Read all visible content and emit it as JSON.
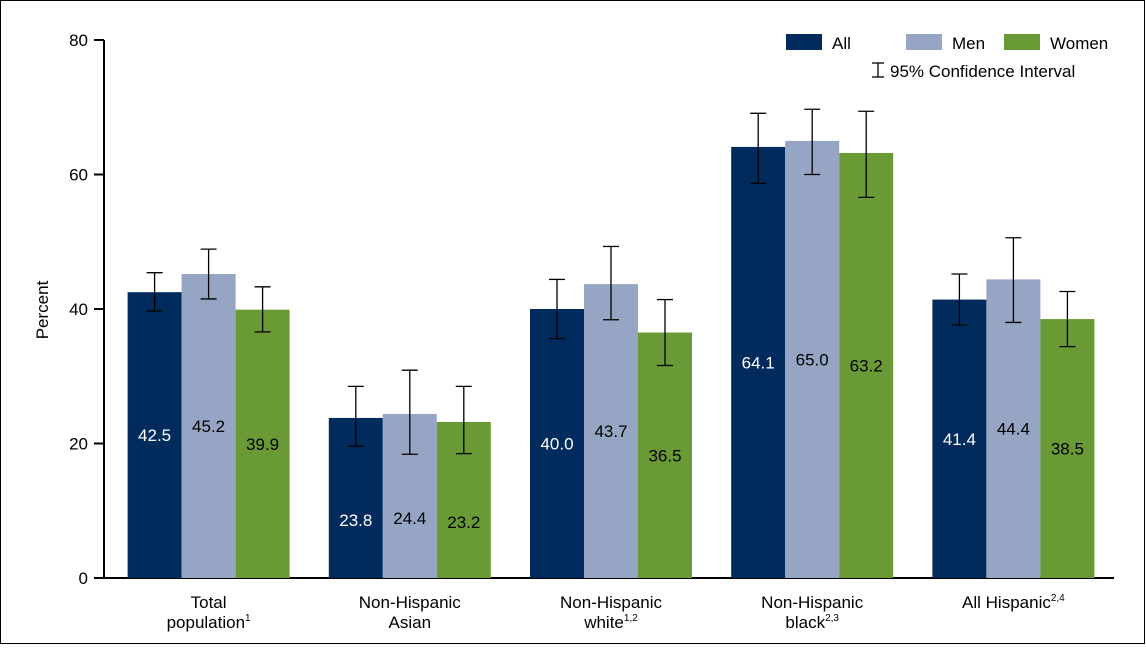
{
  "chart_data": {
    "type": "bar",
    "title": "",
    "xlabel": "",
    "ylabel": "Percent",
    "ylim": [
      0,
      80
    ],
    "yticks": [
      0,
      20,
      40,
      60,
      80
    ],
    "grid": false,
    "legend_position": "top-right",
    "categories": [
      {
        "label_lines": [
          "Total",
          "population"
        ],
        "sup": "1"
      },
      {
        "label_lines": [
          "Non-Hispanic",
          "Asian"
        ],
        "sup": ""
      },
      {
        "label_lines": [
          "Non-Hispanic",
          "white"
        ],
        "sup": "1,2"
      },
      {
        "label_lines": [
          "Non-Hispanic",
          "black"
        ],
        "sup": "2,3"
      },
      {
        "label_lines": [
          "All Hispanic"
        ],
        "sup": "2,4"
      }
    ],
    "series": [
      {
        "name": "All",
        "color": "#002b5c",
        "label_color": "#ffffff",
        "values": [
          42.5,
          23.8,
          40.0,
          64.1,
          41.4
        ],
        "ci": [
          [
            39.7,
            45.4
          ],
          [
            19.6,
            28.5
          ],
          [
            35.6,
            44.4
          ],
          [
            58.7,
            69.1
          ],
          [
            37.6,
            45.2
          ]
        ]
      },
      {
        "name": "Men",
        "color": "#96a5c4",
        "label_color": "#000000",
        "values": [
          45.2,
          24.4,
          43.7,
          65.0,
          44.4
        ],
        "ci": [
          [
            41.5,
            48.9
          ],
          [
            18.4,
            30.9
          ],
          [
            38.4,
            49.3
          ],
          [
            60.0,
            69.7
          ],
          [
            38.0,
            50.6
          ]
        ]
      },
      {
        "name": "Women",
        "color": "#6a9a36",
        "label_color": "#000000",
        "values": [
          39.9,
          23.2,
          36.5,
          63.2,
          38.5
        ],
        "ci": [
          [
            36.6,
            43.3
          ],
          [
            18.5,
            28.5
          ],
          [
            31.6,
            41.4
          ],
          [
            56.6,
            69.4
          ],
          [
            34.4,
            42.6
          ]
        ]
      }
    ],
    "value_labels": [
      [
        "42.5",
        "23.8",
        "40.0",
        "64.1",
        "41.4"
      ],
      [
        "45.2",
        "24.4",
        "43.7",
        "65.0",
        "44.4"
      ],
      [
        "39.9",
        "23.2",
        "36.5",
        "63.2",
        "38.5"
      ]
    ],
    "ci_legend_label": "95% Confidence Interval"
  }
}
